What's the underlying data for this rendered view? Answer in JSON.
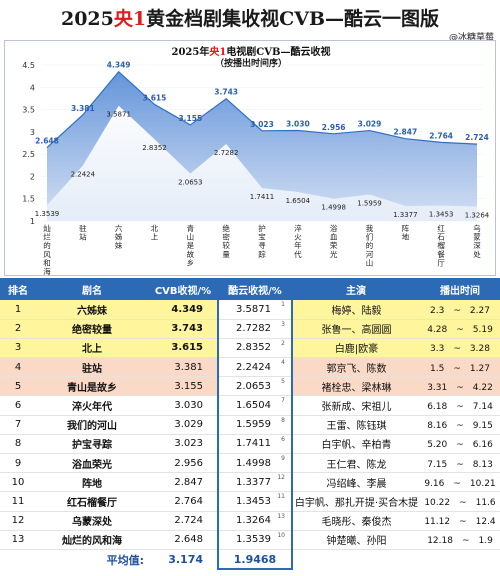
{
  "header": {
    "title_pre": "2025",
    "title_hl": "央1",
    "title_post": "黄金档剧集收视CVB—酷云一图版",
    "watermark": "@冰糖草莓"
  },
  "chart_data": {
    "type": "area",
    "title_pre": "2025年",
    "title_hl": "央1",
    "title_post": "电视剧CVB—酷云收视",
    "subtitle": "（按播出时间序）",
    "ylim": [
      1,
      4.5
    ],
    "yticks": [
      "1",
      "1.5",
      "2",
      "2.5",
      "3",
      "3.5",
      "4",
      "4.5"
    ],
    "categories": [
      "灿烂的风和海",
      "驻站",
      "六姊妹",
      "北上",
      "青山是故乡",
      "绝密较量",
      "护宝寻踪",
      "淬火年代",
      "浴血荣光",
      "我们的河山",
      "阵地",
      "红石榴餐厅",
      "乌蒙深处"
    ],
    "series": [
      {
        "values": [
          2.648,
          3.381,
          4.349,
          3.615,
          3.155,
          3.743,
          3.023,
          3.03,
          2.956,
          3.029,
          2.847,
          2.764,
          2.724
        ],
        "labels": [
          "2.648",
          "3.381",
          "4.349",
          "3.615",
          "3.155",
          "3.743",
          "3.023",
          "3.030",
          "2.956",
          "3.029",
          "2.847",
          "2.764",
          "2.724"
        ],
        "color": "#2e6fc7"
      },
      {
        "values": [
          1.3539,
          2.2424,
          3.5871,
          2.8352,
          2.0653,
          2.7282,
          1.7411,
          1.6504,
          1.4998,
          1.5959,
          1.3377,
          1.3453,
          1.3264
        ],
        "labels": [
          "1.3539",
          "2.2424",
          "3.5871",
          "2.8352",
          "2.0653",
          "2.7282",
          "1.7411",
          "1.6504",
          "1.4998",
          "1.5959",
          "1.3377",
          "1.3453",
          "1.3264"
        ],
        "color": "#dfe8f5"
      }
    ]
  },
  "table": {
    "headers": [
      "排名",
      "剧名",
      "CVB收视/%",
      "酷云收视/%",
      "主演",
      "播出时间"
    ],
    "rows": [
      {
        "rank": "1",
        "name": "六姊妹",
        "cvb": "4.349",
        "cloud": "3.5871",
        "cloud_rank": "1",
        "cast": "梅婷、陆毅",
        "time": "2.3　~　2.27",
        "hl": "y"
      },
      {
        "rank": "2",
        "name": "绝密较量",
        "cvb": "3.743",
        "cloud": "2.7282",
        "cloud_rank": "3",
        "cast": "张鲁一、高圆圆",
        "time": "4.28　~　5.19",
        "hl": "y"
      },
      {
        "rank": "3",
        "name": "北上",
        "cvb": "3.615",
        "cloud": "2.8352",
        "cloud_rank": "2",
        "cast": "白鹿|欧豪",
        "time": "3.3　~　3.28",
        "hl": "y"
      },
      {
        "rank": "4",
        "name": "驻站",
        "cvb": "3.381",
        "cloud": "2.2424",
        "cloud_rank": "4",
        "cast": "郭京飞、陈数",
        "time": "1.5　~　1.27",
        "hl": "p"
      },
      {
        "rank": "5",
        "name": "青山是故乡",
        "cvb": "3.155",
        "cloud": "2.0653",
        "cloud_rank": "5",
        "cast": "褚栓忠、梁林琳",
        "time": "3.31　~　4.22",
        "hl": "p"
      },
      {
        "rank": "6",
        "name": "淬火年代",
        "cvb": "3.030",
        "cloud": "1.6504",
        "cloud_rank": "7",
        "cast": "张新成、宋祖儿",
        "time": "6.18　~　7.14",
        "hl": ""
      },
      {
        "rank": "7",
        "name": "我们的河山",
        "cvb": "3.029",
        "cloud": "1.5959",
        "cloud_rank": "8",
        "cast": "王雷、陈钰琪",
        "time": "8.16　~　9.15",
        "hl": ""
      },
      {
        "rank": "8",
        "name": "护宝寻踪",
        "cvb": "3.023",
        "cloud": "1.7411",
        "cloud_rank": "6",
        "cast": "白宇帆、辛柏青",
        "time": "5.20　~　6.16",
        "hl": ""
      },
      {
        "rank": "9",
        "name": "浴血荣光",
        "cvb": "2.956",
        "cloud": "1.4998",
        "cloud_rank": "9",
        "cast": "王仁君、陈龙",
        "time": "7.15　~　8.13",
        "hl": ""
      },
      {
        "rank": "10",
        "name": "阵地",
        "cvb": "2.847",
        "cloud": "1.3377",
        "cloud_rank": "12",
        "cast": "冯绍峰、李晨",
        "time": "9.16　~　10.21",
        "hl": ""
      },
      {
        "rank": "11",
        "name": "红石榴餐厅",
        "cvb": "2.764",
        "cloud": "1.3453",
        "cloud_rank": "11",
        "cast": "白宇帆、那扎开提·买合木提",
        "time": "10.22　~　11.6",
        "hl": ""
      },
      {
        "rank": "12",
        "name": "乌蒙深处",
        "cvb": "2.724",
        "cloud": "1.3264",
        "cloud_rank": "13",
        "cast": "毛晓彤、秦俊杰",
        "time": "11.12　~　12.4",
        "hl": ""
      },
      {
        "rank": "13",
        "name": "灿烂的风和海",
        "cvb": "2.648",
        "cloud": "1.3539",
        "cloud_rank": "10",
        "cast": "钟楚曦、孙阳",
        "time": "12.18　~　1.9",
        "hl": ""
      }
    ],
    "average_label": "平均值:",
    "average_cvb": "3.174",
    "average_cloud": "1.9468"
  }
}
